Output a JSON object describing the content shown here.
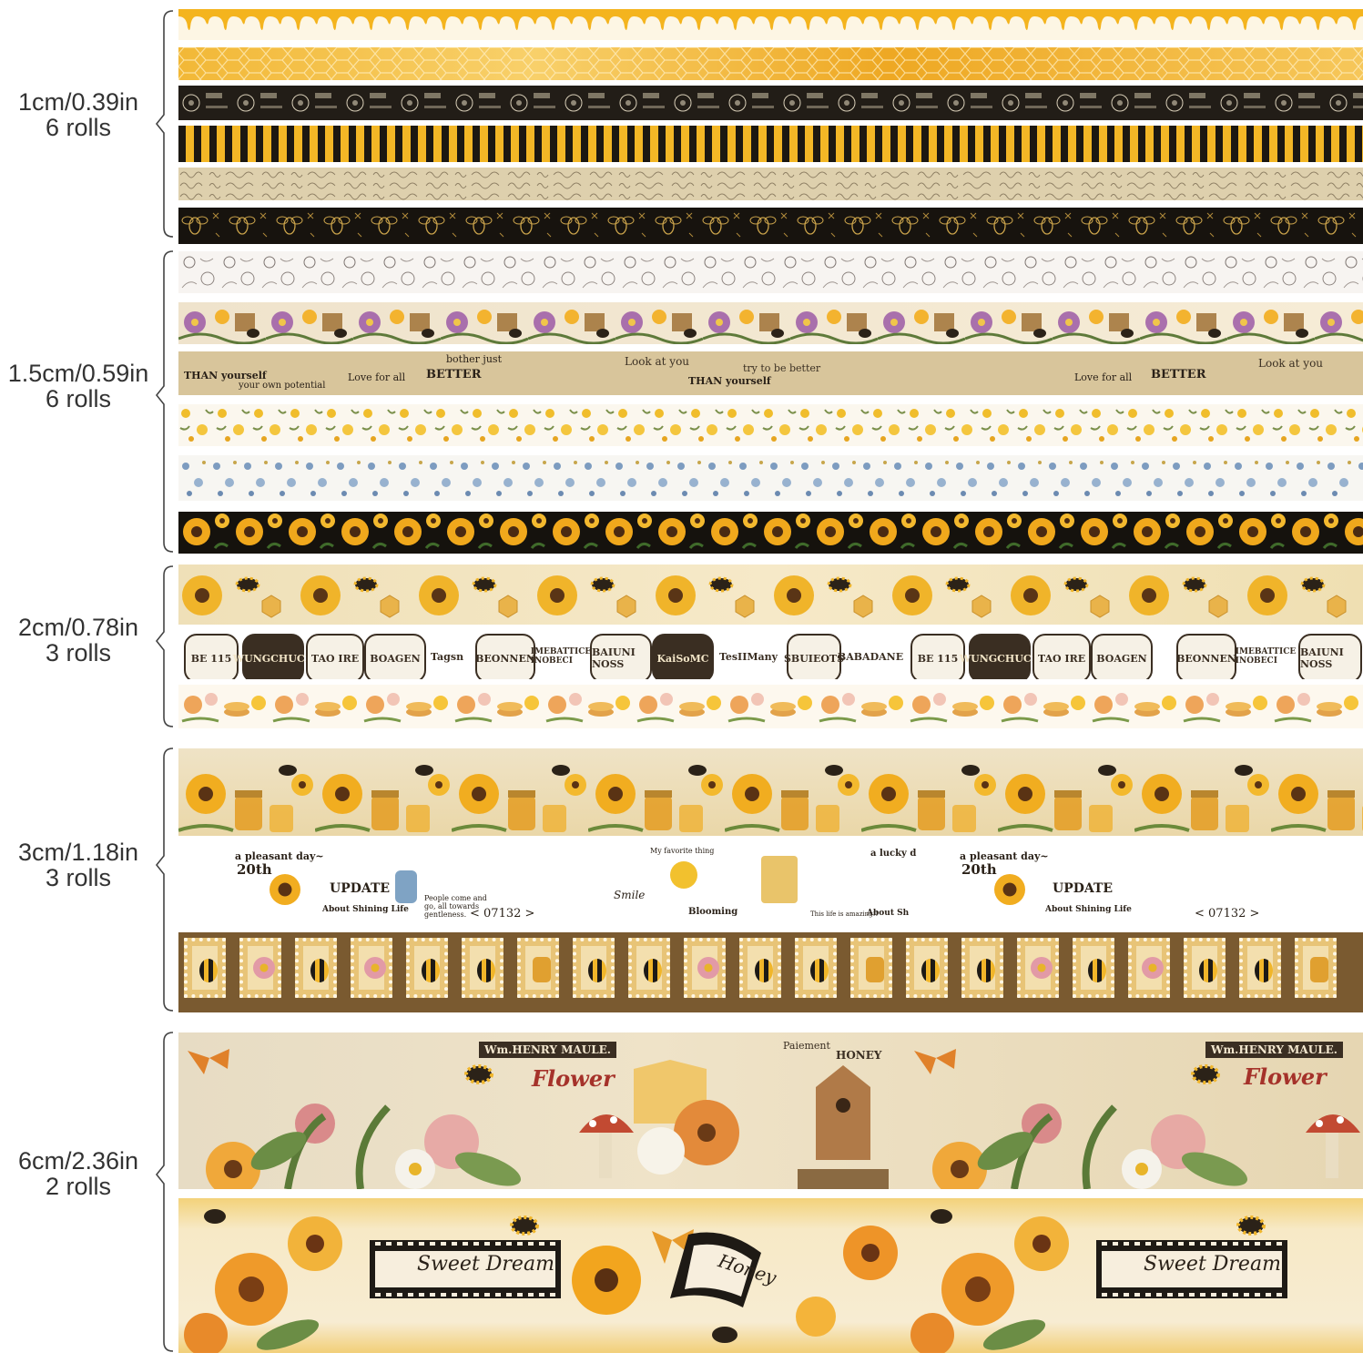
{
  "groups": [
    {
      "label_line1": "1cm/0.39in",
      "label_line2": "6 rolls"
    },
    {
      "label_line1": "1.5cm/0.59in",
      "label_line2": "6 rolls"
    },
    {
      "label_line1": "2cm/0.78in",
      "label_line2": "3 rolls"
    },
    {
      "label_line1": "3cm/1.18in",
      "label_line2": "3 rolls"
    },
    {
      "label_line1": "6cm/2.36in",
      "label_line2": "2 rolls"
    }
  ],
  "tape_text": {
    "vintage_sayings": [
      "Look at you",
      "try to be better",
      "THAN yourself",
      "BETTER",
      "Love for all",
      "bother just",
      "your own potential"
    ],
    "labels": [
      "BE 115",
      "WUNGCHUCK",
      "TAO IRE",
      "BOAGEN",
      "BEONNEN",
      "BAIUNI NOSS",
      "KaiSoMC",
      "TesIIMany",
      "SBUIEOTS",
      "BABADANE",
      "IMEBATTICE INOBECI",
      "Tagsn"
    ],
    "journal": [
      "a pleasant day~",
      "20th",
      "UPDATE",
      "About Shining Life",
      "People come and go, all towards gentleness.",
      "< 07132 >",
      "My favorite thing",
      "Smile",
      "Blooming",
      "This life is amazing!!",
      "a lucky d",
      "About Sh"
    ],
    "garden": [
      "Wm.HENRY MAULE.",
      "Flower",
      "Paiement",
      "HONEY"
    ],
    "sweet": [
      "Sweet Dream",
      "Honey"
    ]
  },
  "colors": {
    "honey": "#f0b42a",
    "dark": "#1f1a14",
    "kraft": "#d9c49a",
    "stamp_brown": "#7a5a30",
    "label_text": "#333333"
  }
}
